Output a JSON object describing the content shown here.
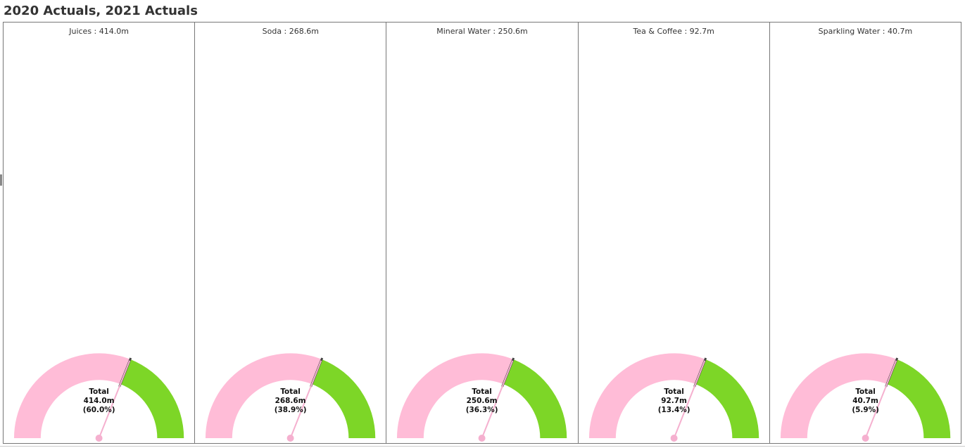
{
  "header": {
    "title": "2020 Actuals, 2021 Actuals"
  },
  "colors": {
    "actual": "#ffbcd7",
    "target": "#7dd627",
    "marker": "#444444",
    "needle": "#f5b0cf"
  },
  "chart_data": {
    "type": "gauge",
    "gauges": [
      {
        "label": "Juices : 414.0m",
        "center_title": "Total",
        "value_text": "414.0m",
        "pct_text": "(60.0%)",
        "value": 414.0,
        "percent": 60.0
      },
      {
        "label": "Soda : 268.6m",
        "center_title": "Total",
        "value_text": "268.6m",
        "pct_text": "(38.9%)",
        "value": 268.6,
        "percent": 38.9
      },
      {
        "label": "Mineral Water : 250.6m",
        "center_title": "Total",
        "value_text": "250.6m",
        "pct_text": "(36.3%)",
        "value": 250.6,
        "percent": 36.3
      },
      {
        "label": "Tea & Coffee : 92.7m",
        "center_title": "Total",
        "value_text": "92.7m",
        "pct_text": "(13.4%)",
        "value": 92.7,
        "percent": 13.4
      },
      {
        "label": "Sparkling Water : 40.7m",
        "center_title": "Total",
        "value_text": "40.7m",
        "pct_text": "(5.9%)",
        "value": 40.7,
        "percent": 5.9
      }
    ]
  }
}
